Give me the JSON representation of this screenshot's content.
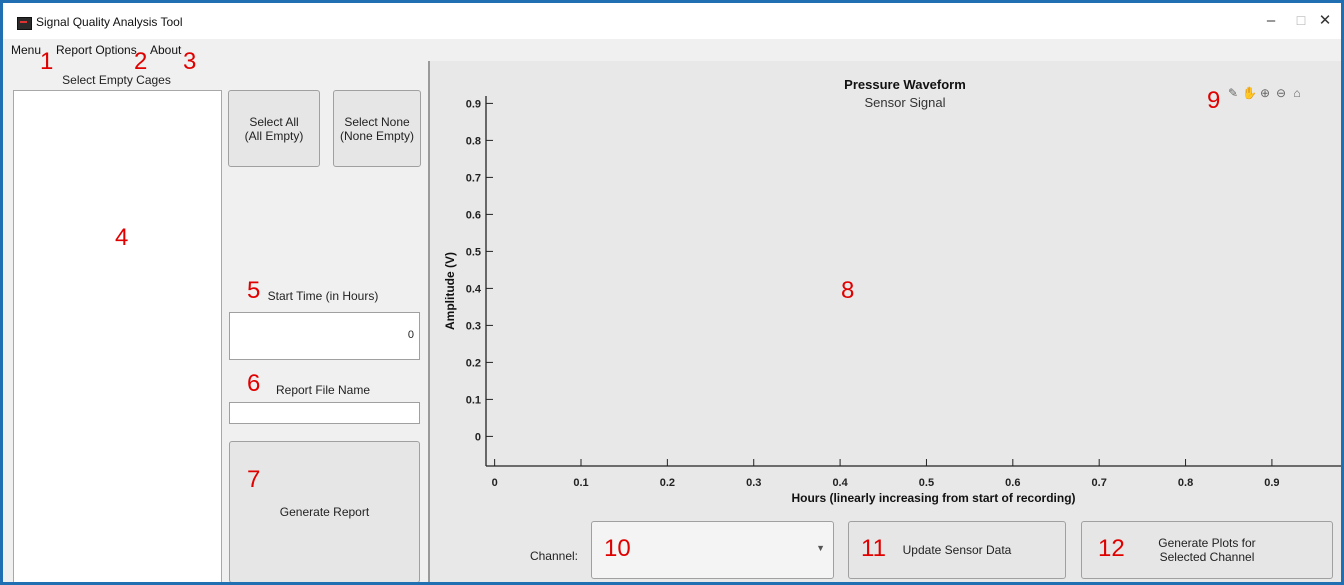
{
  "window": {
    "title": "Signal Quality Analysis Tool",
    "controls": {
      "minimize": "–",
      "maximize": "☐",
      "close": "✕"
    }
  },
  "menu": {
    "items": [
      "Menu",
      "Report Options",
      "About"
    ]
  },
  "left": {
    "cages_label": "Select Empty Cages",
    "select_all_label": "Select All\n(All Empty)",
    "select_none_label": "Select None\n(None Empty)",
    "start_time_label": "Start Time (in Hours)",
    "start_time_value": "0",
    "report_file_label": "Report File Name",
    "report_file_value": "",
    "generate_report_label": "Generate Report"
  },
  "chart_toolbar": {
    "icons": [
      "export-icon",
      "pan-icon",
      "zoom-in-icon",
      "zoom-out-icon",
      "home-icon"
    ]
  },
  "bottom": {
    "channel_label": "Channel:",
    "channel_value": "",
    "update_label": "Update Sensor Data",
    "generate_plots_label": "Generate Plots for\nSelected Channel"
  },
  "callouts": [
    "1",
    "2",
    "3",
    "4",
    "5",
    "6",
    "7",
    "8",
    "9",
    "10",
    "11",
    "12"
  ],
  "colors": {
    "callout": "#e00000",
    "window_border": "#1f6fb2",
    "panel_bg": "#f0f0f0",
    "plot_bg": "#e8e8e8"
  },
  "chart_data": {
    "type": "line",
    "title": "Pressure Waveform",
    "subtitle": "Sensor Signal",
    "xlabel": "Hours (linearly increasing from start of recording)",
    "ylabel": "Amplitude (V)",
    "xlim": [
      -0.01,
      0.98
    ],
    "ylim": [
      -0.08,
      0.92
    ],
    "xticks": [
      "0",
      "0.1",
      "0.2",
      "0.3",
      "0.4",
      "0.5",
      "0.6",
      "0.7",
      "0.8",
      "0.9"
    ],
    "yticks": [
      "0",
      "0.1",
      "0.2",
      "0.3",
      "0.4",
      "0.5",
      "0.6",
      "0.7",
      "0.8",
      "0.9"
    ],
    "grid": false,
    "series": []
  }
}
